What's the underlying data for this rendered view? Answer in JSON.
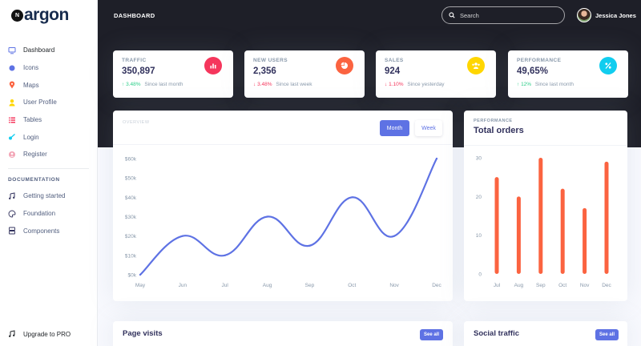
{
  "brand": {
    "mark": "N",
    "name": "argon"
  },
  "sidebar": {
    "items": [
      {
        "label": "Dashboard",
        "icon": "monitor-icon",
        "color": "#5e72e4"
      },
      {
        "label": "Icons",
        "icon": "planet-icon",
        "color": "#5e72e4"
      },
      {
        "label": "Maps",
        "icon": "pin-icon",
        "color": "#fb6340"
      },
      {
        "label": "User Profile",
        "icon": "user-icon",
        "color": "#ffd600"
      },
      {
        "label": "Tables",
        "icon": "list-icon",
        "color": "#f5365c"
      },
      {
        "label": "Login",
        "icon": "key-icon",
        "color": "#11cdef"
      },
      {
        "label": "Register",
        "icon": "person-circle-icon",
        "color": "#f3a4b5"
      }
    ],
    "doc_heading": "DOCUMENTATION",
    "doc_items": [
      {
        "label": "Getting started",
        "icon": "rocket-icon"
      },
      {
        "label": "Foundation",
        "icon": "palette-icon"
      },
      {
        "label": "Components",
        "icon": "ui-components-icon"
      }
    ],
    "upgrade_label": "Upgrade to PRO"
  },
  "header": {
    "title": "DASHBOARD",
    "search_placeholder": "Search",
    "user_name": "Jessica Jones"
  },
  "stats": [
    {
      "label": "TRAFFIC",
      "value": "350,897",
      "change": "3.48%",
      "direction": "up",
      "since": "Since last month",
      "icon": "chart-bar-icon",
      "color": "#f5365c"
    },
    {
      "label": "NEW USERS",
      "value": "2,356",
      "change": "3.48%",
      "direction": "down",
      "since": "Since last week",
      "icon": "chart-pie-icon",
      "color": "#fb6340"
    },
    {
      "label": "SALES",
      "value": "924",
      "change": "1.10%",
      "direction": "down",
      "since": "Since yesterday",
      "icon": "users-icon",
      "color": "#ffd600"
    },
    {
      "label": "PERFORMANCE",
      "value": "49,65%",
      "change": "12%",
      "direction": "up",
      "since": "Since last month",
      "icon": "percent-icon",
      "color": "#11cdef"
    }
  ],
  "overview": {
    "label": "OVERVIEW",
    "tabs": [
      "Month",
      "Week"
    ],
    "active_tab": "Month"
  },
  "orders": {
    "label": "PERFORMANCE",
    "title": "Total orders"
  },
  "page_visits": {
    "title": "Page visits",
    "button": "See all"
  },
  "social_traffic": {
    "title": "Social traffic",
    "button": "See all"
  },
  "chart_data": [
    {
      "type": "line",
      "categories": [
        "May",
        "Jun",
        "Jul",
        "Aug",
        "Sep",
        "Oct",
        "Nov",
        "Dec"
      ],
      "series": [
        {
          "values": [
            0,
            20,
            10,
            30,
            15,
            40,
            20,
            60
          ]
        }
      ],
      "ylim": [
        0,
        60
      ],
      "y_ticks": [
        0,
        10,
        20,
        30,
        40,
        50,
        60
      ],
      "y_tick_labels": [
        "$0k",
        "$10k",
        "$20k",
        "$30k",
        "$40k",
        "$50k",
        "$60k"
      ],
      "grid": false,
      "color": "#5e72e4"
    },
    {
      "type": "bar",
      "categories": [
        "Jul",
        "Aug",
        "Sep",
        "Oct",
        "Nov",
        "Dec"
      ],
      "values": [
        25,
        20,
        30,
        22,
        17,
        29
      ],
      "ylim": [
        0,
        30
      ],
      "y_ticks": [
        0,
        10,
        20,
        30
      ],
      "grid": false,
      "color": "#fb6340"
    }
  ]
}
